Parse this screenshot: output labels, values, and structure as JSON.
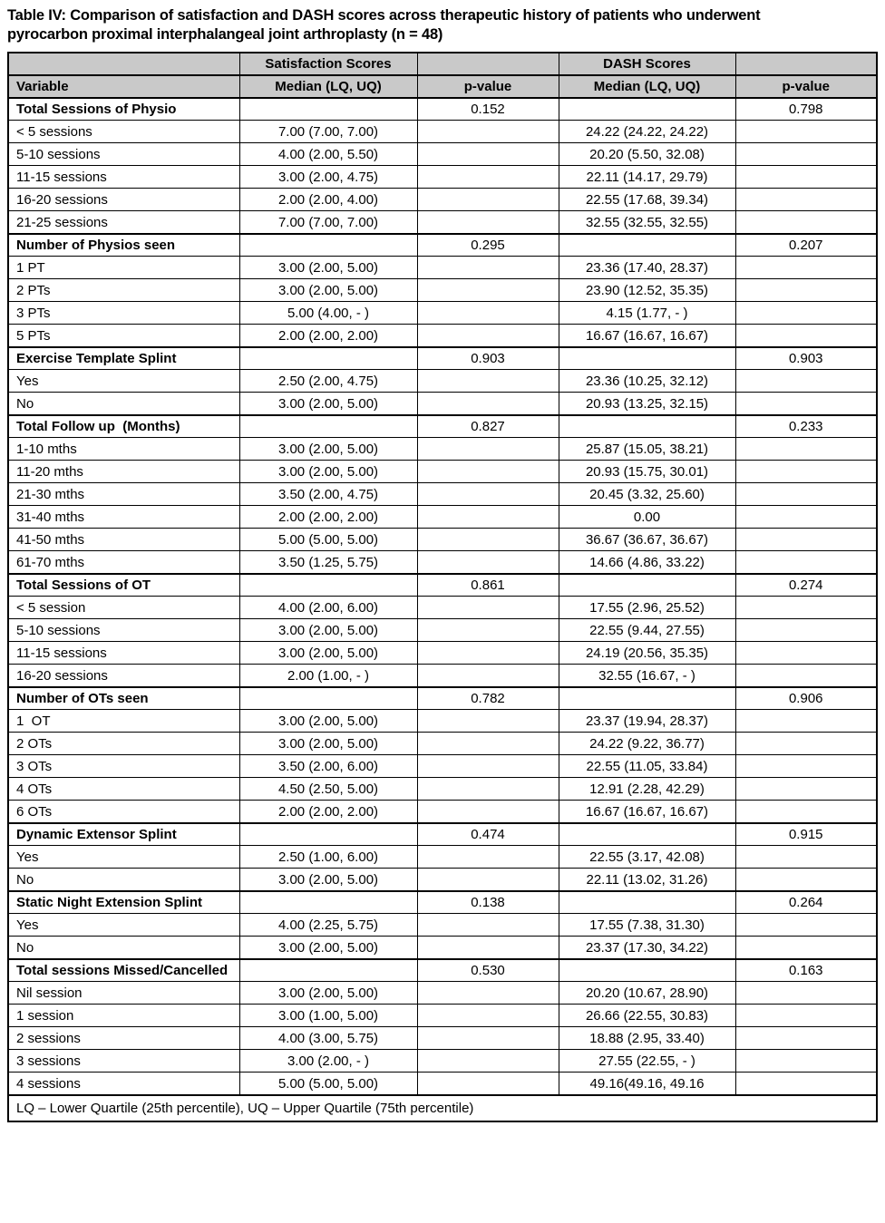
{
  "title": "Table IV: Comparison of satisfaction and DASH scores across therapeutic history of patients who underwent pyrocarbon proximal interphalangeal joint arthroplasty (n = 48)",
  "table": {
    "group_headers": [
      "",
      "Satisfaction Scores",
      "",
      "DASH Scores",
      ""
    ],
    "column_headers": [
      "Variable",
      "Median (LQ, UQ)",
      "p-value",
      "Median (LQ, UQ)",
      "p-value"
    ],
    "header_bg_color": "#c9c9c9",
    "border_color": "#000000",
    "rows": [
      {
        "type": "section",
        "variable": "Total Sessions of Physio",
        "sat_p": "0.152",
        "dash_p": "0.798"
      },
      {
        "type": "data",
        "variable": "< 5 sessions",
        "sat": "7.00 (7.00, 7.00)",
        "dash": "24.22 (24.22, 24.22)"
      },
      {
        "type": "data",
        "variable": "5-10 sessions",
        "sat": "4.00 (2.00, 5.50)",
        "dash": "20.20 (5.50, 32.08)"
      },
      {
        "type": "data",
        "variable": "11-15 sessions",
        "sat": "3.00 (2.00, 4.75)",
        "dash": "22.11 (14.17, 29.79)"
      },
      {
        "type": "data",
        "variable": "16-20 sessions",
        "sat": "2.00 (2.00, 4.00)",
        "dash": "22.55 (17.68, 39.34)"
      },
      {
        "type": "data",
        "variable": "21-25 sessions",
        "sat": "7.00 (7.00, 7.00)",
        "dash": "32.55 (32.55, 32.55)"
      },
      {
        "type": "section",
        "variable": "Number of Physios seen",
        "sat_p": "0.295",
        "dash_p": "0.207"
      },
      {
        "type": "data",
        "variable": "1 PT",
        "sat": "3.00 (2.00, 5.00)",
        "dash": "23.36 (17.40, 28.37)"
      },
      {
        "type": "data",
        "variable": "2 PTs",
        "sat": "3.00 (2.00, 5.00)",
        "dash": "23.90 (12.52, 35.35)"
      },
      {
        "type": "data",
        "variable": "3 PTs",
        "sat": "5.00 (4.00, - )",
        "dash": "4.15 (1.77, - )"
      },
      {
        "type": "data",
        "variable": "5 PTs",
        "sat": "2.00 (2.00, 2.00)",
        "dash": "16.67 (16.67, 16.67)"
      },
      {
        "type": "section",
        "variable": "Exercise Template Splint",
        "sat_p": "0.903",
        "dash_p": "0.903"
      },
      {
        "type": "data",
        "variable": "Yes",
        "sat": "2.50 (2.00, 4.75)",
        "dash": "23.36 (10.25, 32.12)"
      },
      {
        "type": "data",
        "variable": "No",
        "sat": "3.00 (2.00, 5.00)",
        "dash": "20.93 (13.25, 32.15)"
      },
      {
        "type": "section",
        "variable": "Total Follow up  (Months)",
        "sat_p": "0.827",
        "dash_p": "0.233"
      },
      {
        "type": "data",
        "variable": "1-10 mths",
        "sat": "3.00 (2.00, 5.00)",
        "dash": "25.87 (15.05, 38.21)"
      },
      {
        "type": "data",
        "variable": "11-20 mths",
        "sat": "3.00 (2.00, 5.00)",
        "dash": "20.93 (15.75, 30.01)"
      },
      {
        "type": "data",
        "variable": "21-30 mths",
        "sat": "3.50 (2.00, 4.75)",
        "dash": "20.45 (3.32, 25.60)"
      },
      {
        "type": "data",
        "variable": "31-40 mths",
        "sat": "2.00 (2.00, 2.00)",
        "dash": "0.00"
      },
      {
        "type": "data",
        "variable": "41-50 mths",
        "sat": "5.00 (5.00, 5.00)",
        "dash": "36.67 (36.67, 36.67)"
      },
      {
        "type": "data",
        "variable": "61-70 mths",
        "sat": "3.50 (1.25, 5.75)",
        "dash": "14.66 (4.86, 33.22)"
      },
      {
        "type": "section",
        "variable": "Total Sessions of OT",
        "sat_p": "0.861",
        "dash_p": "0.274"
      },
      {
        "type": "data",
        "variable": "< 5 session",
        "sat": "4.00 (2.00, 6.00)",
        "dash": "17.55 (2.96, 25.52)"
      },
      {
        "type": "data",
        "variable": "5-10 sessions",
        "sat": "3.00 (2.00, 5.00)",
        "dash": "22.55 (9.44, 27.55)"
      },
      {
        "type": "data",
        "variable": "11-15 sessions",
        "sat": "3.00 (2.00, 5.00)",
        "dash": "24.19 (20.56, 35.35)"
      },
      {
        "type": "data",
        "variable": "16-20 sessions",
        "sat": "2.00 (1.00, - )",
        "dash": "32.55 (16.67, - )"
      },
      {
        "type": "section",
        "variable": "Number of OTs seen",
        "sat_p": "0.782",
        "dash_p": "0.906"
      },
      {
        "type": "data",
        "variable": "1  OT",
        "sat": "3.00 (2.00, 5.00)",
        "dash": "23.37 (19.94, 28.37)"
      },
      {
        "type": "data",
        "variable": "2 OTs",
        "sat": "3.00 (2.00, 5.00)",
        "dash": "24.22 (9.22, 36.77)"
      },
      {
        "type": "data",
        "variable": "3 OTs",
        "sat": "3.50 (2.00, 6.00)",
        "dash": "22.55 (11.05, 33.84)"
      },
      {
        "type": "data",
        "variable": "4 OTs",
        "sat": "4.50 (2.50, 5.00)",
        "dash": "12.91 (2.28, 42.29)"
      },
      {
        "type": "data",
        "variable": "6 OTs",
        "sat": "2.00 (2.00, 2.00)",
        "dash": "16.67 (16.67, 16.67)"
      },
      {
        "type": "section",
        "variable": "Dynamic Extensor Splint",
        "sat_p": "0.474",
        "dash_p": "0.915"
      },
      {
        "type": "data",
        "variable": "Yes",
        "sat": "2.50 (1.00, 6.00)",
        "dash": "22.55 (3.17, 42.08)"
      },
      {
        "type": "data",
        "variable": "No",
        "sat": "3.00 (2.00, 5.00)",
        "dash": "22.11 (13.02, 31.26)"
      },
      {
        "type": "section",
        "variable": "Static Night Extension Splint",
        "sat_p": "0.138",
        "dash_p": "0.264"
      },
      {
        "type": "data",
        "variable": "Yes",
        "sat": "4.00 (2.25, 5.75)",
        "dash": "17.55 (7.38, 31.30)"
      },
      {
        "type": "data",
        "variable": "No",
        "sat": "3.00 (2.00, 5.00)",
        "dash": "23.37 (17.30, 34.22)"
      },
      {
        "type": "section",
        "variable": "Total sessions Missed/Cancelled",
        "sat_p": "0.530",
        "dash_p": "0.163"
      },
      {
        "type": "data",
        "variable": "Nil session",
        "sat": "3.00 (2.00, 5.00)",
        "dash": "20.20 (10.67, 28.90)"
      },
      {
        "type": "data",
        "variable": "1 session",
        "sat": "3.00 (1.00, 5.00)",
        "dash": "26.66 (22.55, 30.83)"
      },
      {
        "type": "data",
        "variable": "2 sessions",
        "sat": "4.00 (3.00, 5.75)",
        "dash": "18.88 (2.95, 33.40)"
      },
      {
        "type": "data",
        "variable": "3 sessions",
        "sat": "3.00 (2.00, - )",
        "dash": "27.55 (22.55, - )"
      },
      {
        "type": "data",
        "variable": "4 sessions",
        "sat": "5.00 (5.00, 5.00)",
        "dash": "49.16(49.16, 49.16"
      }
    ],
    "footnote": "LQ – Lower Quartile (25th percentile), UQ – Upper Quartile (75th percentile)"
  }
}
